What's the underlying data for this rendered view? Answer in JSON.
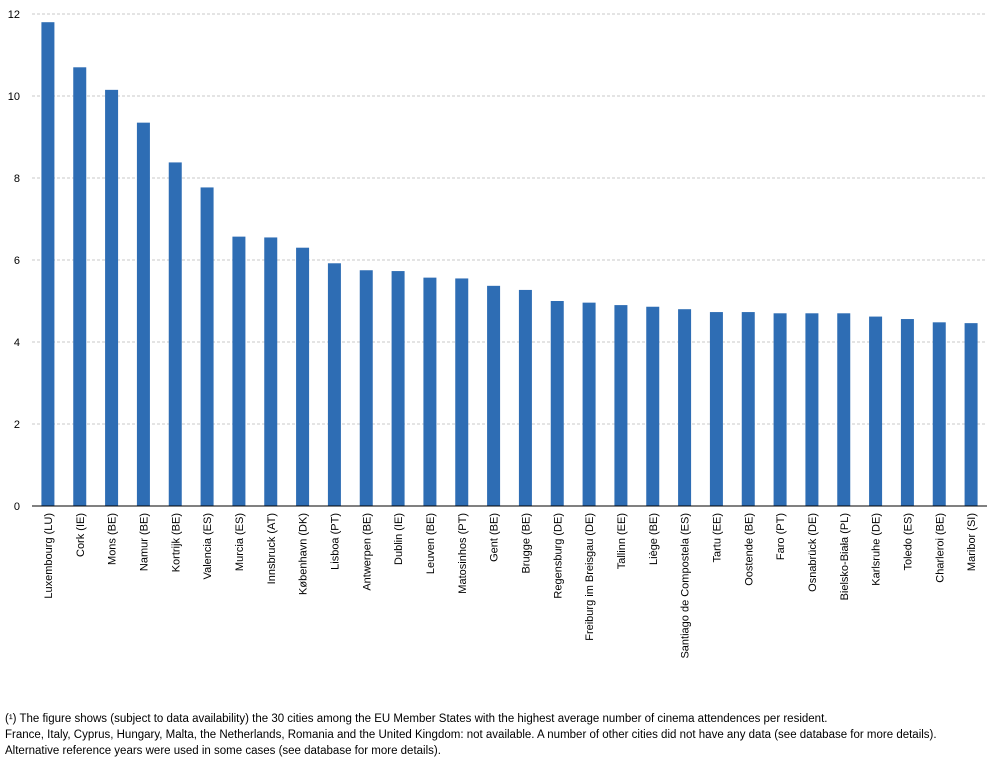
{
  "chart_data": {
    "type": "bar",
    "title": "",
    "xlabel": "",
    "ylabel": "",
    "ylim": [
      0,
      12
    ],
    "yticks": [
      0,
      2,
      4,
      6,
      8,
      10,
      12
    ],
    "grid": true,
    "bar_color": "#2e6db4",
    "categories": [
      "Luxembourg (LU)",
      "Cork (IE)",
      "Mons (BE)",
      "Namur (BE)",
      "Kortrijk (BE)",
      "Valencia (ES)",
      "Murcia (ES)",
      "Innsbruck (AT)",
      "København (DK)",
      "Lisboa (PT)",
      "Antwerpen (BE)",
      "Dublin (IE)",
      "Leuven (BE)",
      "Matosinhos (PT)",
      "Gent (BE)",
      "Brugge (BE)",
      "Regensburg (DE)",
      "Freiburg im Breisgau (DE)",
      "Tallinn (EE)",
      "Liège (BE)",
      "Santiago de Compostela (ES)",
      "Tartu (EE)",
      "Oostende (BE)",
      "Faro (PT)",
      "Osnabrück (DE)",
      "Bielsko-Biała (PL)",
      "Karlsruhe (DE)",
      "Toledo (ES)",
      "Charleroi (BE)",
      "Maribor (SI)"
    ],
    "values": [
      11.8,
      10.7,
      10.15,
      9.35,
      8.38,
      7.77,
      6.57,
      6.55,
      6.3,
      5.92,
      5.75,
      5.73,
      5.57,
      5.55,
      5.37,
      5.27,
      5.0,
      4.96,
      4.9,
      4.86,
      4.8,
      4.73,
      4.73,
      4.7,
      4.7,
      4.7,
      4.62,
      4.56,
      4.48,
      4.46
    ]
  },
  "footnote": {
    "line1": "(¹) The figure shows (subject to data availability) the 30 cities among the EU Member States with the highest average number of cinema attendences per resident.",
    "line2": "France, Italy, Cyprus, Hungary, Malta, the Netherlands, Romania and the United Kingdom: not available. A number of other cities did not have any data (see database for more details). Alternative reference years were used in some cases (see database for more details)."
  }
}
